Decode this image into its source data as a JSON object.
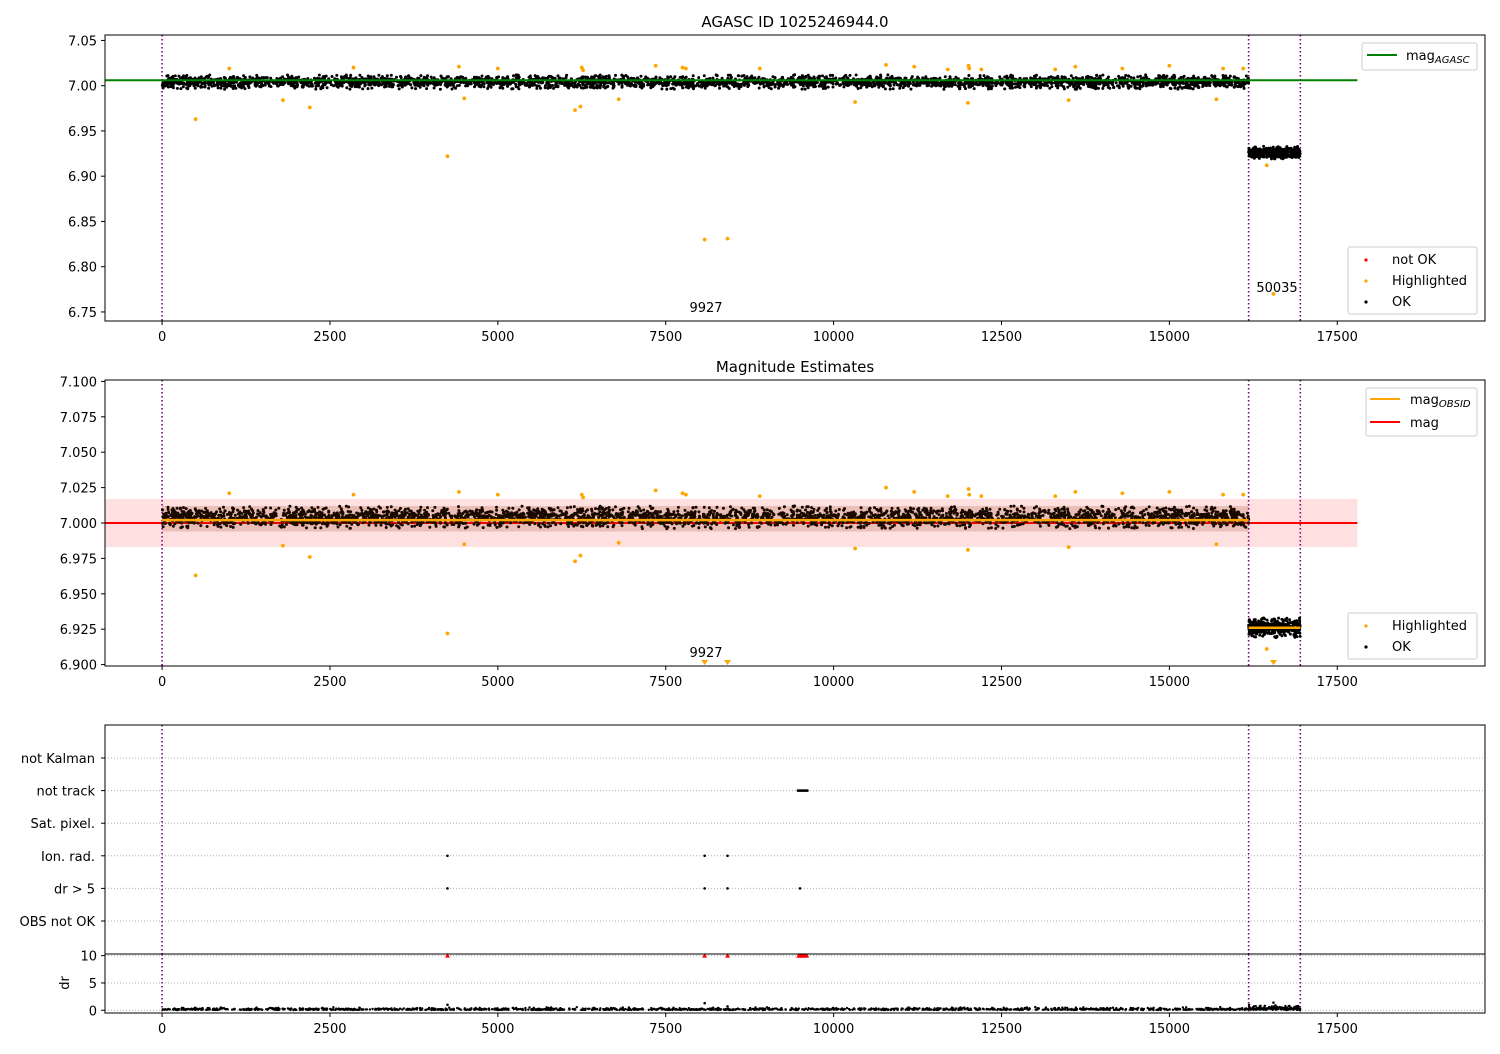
{
  "chart_data": [
    {
      "type": "scatter",
      "title": "AGASC ID 1025246944.0",
      "xlim": [
        -850,
        19700
      ],
      "ylim": [
        6.74,
        7.056
      ],
      "xticks": [
        0,
        2500,
        5000,
        7500,
        10000,
        12500,
        15000,
        17500
      ],
      "yticks": [
        6.75,
        6.8,
        6.85,
        6.9,
        6.95,
        7.0,
        7.05
      ],
      "ytick_labels": [
        "6.75",
        "6.80",
        "6.85",
        "6.90",
        "6.95",
        "7.00",
        "7.05"
      ],
      "vlines": [
        0,
        16180,
        16950
      ],
      "hline": {
        "label": "mag$_{AGASC}$",
        "label_main": "mag",
        "label_sub": "AGASC",
        "value": 7.006,
        "xrange": [
          -850,
          17800
        ],
        "color": "#008000"
      },
      "bands": [
        {
          "x0": 0,
          "x1": 16180,
          "center": 7.004,
          "spread": 0.008
        },
        {
          "x0": 16180,
          "x1": 16950,
          "center": 6.926,
          "spread": 0.007
        }
      ],
      "highlighted": [
        [
          500,
          6.963
        ],
        [
          1000,
          7.019
        ],
        [
          1800,
          6.984
        ],
        [
          2200,
          6.976
        ],
        [
          2850,
          7.02
        ],
        [
          4250,
          6.922
        ],
        [
          4420,
          7.021
        ],
        [
          4500,
          6.986
        ],
        [
          5000,
          7.019
        ],
        [
          6150,
          6.973
        ],
        [
          6230,
          6.977
        ],
        [
          6250,
          7.02
        ],
        [
          6270,
          7.017
        ],
        [
          6800,
          6.985
        ],
        [
          7350,
          7.022
        ],
        [
          7750,
          7.02
        ],
        [
          7800,
          7.019
        ],
        [
          8080,
          6.83
        ],
        [
          8420,
          6.831
        ],
        [
          8900,
          7.019
        ],
        [
          10320,
          6.982
        ],
        [
          10780,
          7.023
        ],
        [
          11200,
          7.021
        ],
        [
          11700,
          7.018
        ],
        [
          12000,
          6.981
        ],
        [
          12010,
          7.022
        ],
        [
          12020,
          7.019
        ],
        [
          12200,
          7.018
        ],
        [
          13300,
          7.018
        ],
        [
          13500,
          6.984
        ],
        [
          13600,
          7.021
        ],
        [
          14300,
          7.019
        ],
        [
          15000,
          7.022
        ],
        [
          15700,
          6.985
        ],
        [
          15800,
          7.019
        ],
        [
          16100,
          7.019
        ],
        [
          16450,
          6.912
        ],
        [
          16550,
          6.77
        ]
      ],
      "legend": [
        "not OK",
        "Highlighted",
        "OK"
      ],
      "annotations": [
        {
          "text": "9927",
          "x": 7800,
          "y": 6.746
        },
        {
          "text": "50035",
          "x": 16550,
          "y": 6.768
        }
      ]
    },
    {
      "type": "scatter",
      "title": "Magnitude Estimates",
      "xlim": [
        -850,
        19700
      ],
      "ylim": [
        6.899,
        7.101
      ],
      "xticks": [
        0,
        2500,
        5000,
        7500,
        10000,
        12500,
        15000,
        17500
      ],
      "yticks": [
        6.9,
        6.925,
        6.95,
        6.975,
        7.0,
        7.025,
        7.05,
        7.075,
        7.1
      ],
      "ytick_labels": [
        "6.900",
        "6.925",
        "6.950",
        "6.975",
        "7.000",
        "7.025",
        "7.050",
        "7.075",
        "7.100"
      ],
      "vlines": [
        0,
        16180,
        16950
      ],
      "mag_line": {
        "label": "mag",
        "value": 7.0,
        "color": "#ff0000",
        "xrange": [
          -850,
          17800
        ]
      },
      "mag_band": {
        "low": 6.983,
        "high": 7.017,
        "xrange": [
          -850,
          17800
        ]
      },
      "obsid_mag": {
        "label_main": "mag",
        "label_sub": "OBSID",
        "color": "#ffa500",
        "segments": [
          {
            "x0": 0,
            "x1": 16180,
            "y": 7.002
          },
          {
            "x0": 16180,
            "x1": 16950,
            "y": 6.926
          }
        ]
      },
      "bands": [
        {
          "x0": 0,
          "x1": 16180,
          "center": 7.004,
          "spread": 0.008
        },
        {
          "x0": 16180,
          "x1": 16950,
          "center": 6.926,
          "spread": 0.007
        }
      ],
      "highlighted": [
        [
          500,
          6.963
        ],
        [
          1000,
          7.021
        ],
        [
          1800,
          6.984
        ],
        [
          2200,
          6.976
        ],
        [
          2850,
          7.02
        ],
        [
          4250,
          6.922
        ],
        [
          4420,
          7.022
        ],
        [
          4500,
          6.985
        ],
        [
          5000,
          7.02
        ],
        [
          6150,
          6.973
        ],
        [
          6230,
          6.977
        ],
        [
          6250,
          7.02
        ],
        [
          6270,
          7.018
        ],
        [
          6800,
          6.986
        ],
        [
          7350,
          7.023
        ],
        [
          7750,
          7.021
        ],
        [
          7800,
          7.02
        ],
        [
          8900,
          7.019
        ],
        [
          10320,
          6.982
        ],
        [
          10780,
          7.025
        ],
        [
          11200,
          7.022
        ],
        [
          11700,
          7.019
        ],
        [
          12000,
          6.981
        ],
        [
          12010,
          7.024
        ],
        [
          12020,
          7.02
        ],
        [
          12200,
          7.019
        ],
        [
          13300,
          7.019
        ],
        [
          13500,
          6.983
        ],
        [
          13600,
          7.022
        ],
        [
          14300,
          7.021
        ],
        [
          15000,
          7.022
        ],
        [
          15700,
          6.985
        ],
        [
          15800,
          7.02
        ],
        [
          16100,
          7.02
        ],
        [
          16450,
          6.911
        ]
      ],
      "offscale_markers": [
        8080,
        8420,
        16550
      ],
      "legend": [
        "Highlighted",
        "OK"
      ],
      "annotations": [
        {
          "text": "9927",
          "x": 7800,
          "y": 6.906
        }
      ]
    },
    {
      "type": "scatter",
      "xlim": [
        -850,
        19700
      ],
      "xticks": [
        0,
        2500,
        5000,
        7500,
        10000,
        12500,
        15000,
        17500
      ],
      "vlines": [
        0,
        16180,
        16950
      ],
      "flag_rows": [
        "not Kalman",
        "not track",
        "Sat. pixel.",
        "Ion. rad.",
        "dr > 5",
        "OBS not OK"
      ],
      "flags": {
        "not track": [
          9470,
          9490,
          9510,
          9530,
          9550,
          9570,
          9590,
          9610
        ],
        "Ion. rad.": [
          4250,
          8080,
          8420
        ],
        "dr > 5": [
          4250,
          8080,
          8420,
          9500
        ]
      }
    },
    {
      "type": "scatter",
      "ylabel": "dr",
      "xlim": [
        -850,
        19700
      ],
      "ylim": [
        -0.5,
        10.3
      ],
      "xticks": [
        0,
        2500,
        5000,
        7500,
        10000,
        12500,
        15000,
        17500
      ],
      "yticks": [
        0,
        5,
        10
      ],
      "vlines": [
        0,
        16180,
        16950
      ],
      "clipped_red": [
        4250,
        8080,
        8420,
        9480,
        9500,
        9520,
        9540,
        9560,
        9580,
        9600
      ],
      "outliers": [
        [
          4250,
          1.0
        ],
        [
          8080,
          1.3
        ],
        [
          8420,
          0.7
        ],
        [
          16550,
          1.4
        ]
      ]
    }
  ],
  "colors": {
    "ok": "#000000",
    "highlighted": "#ffa500",
    "not_ok": "#ff0000",
    "vline": "#800080"
  }
}
